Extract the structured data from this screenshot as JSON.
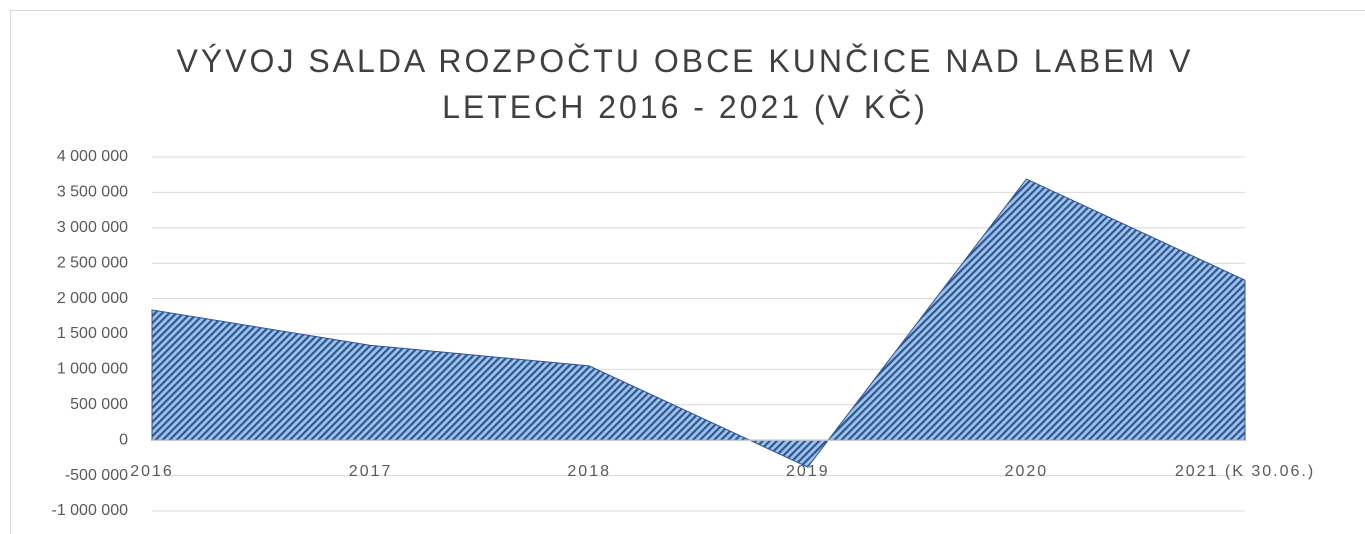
{
  "chart_data": {
    "type": "area",
    "title": "VÝVOJ SALDA ROZPOČTU OBCE KUNČICE NAD LABEM V LETECH 2016 - 2021 (V KČ)",
    "categories": [
      "2016",
      "2017",
      "2018",
      "2019",
      "2020",
      "2021 (K 30.06.)"
    ],
    "values": [
      1840000,
      1340000,
      1050000,
      -380000,
      3690000,
      2260000
    ],
    "color": "#2f5597",
    "ylim": [
      -1000000,
      4000000
    ],
    "yticks": [
      {
        "value": -1000000,
        "label": "-1 000 000"
      },
      {
        "value": -500000,
        "label": "-500 000"
      },
      0,
      {
        "value": 500000,
        "label": "500 000"
      },
      {
        "value": 1000000,
        "label": "1 000 000"
      },
      {
        "value": 1500000,
        "label": "1 500 000"
      },
      {
        "value": 2000000,
        "label": "2 000 000"
      },
      {
        "value": 2500000,
        "label": "2 500 000"
      },
      {
        "value": 3000000,
        "label": "3 000 000"
      },
      {
        "value": 3500000,
        "label": "3 500 000"
      },
      {
        "value": 4000000,
        "label": "4 000 000"
      }
    ],
    "grid": true
  }
}
